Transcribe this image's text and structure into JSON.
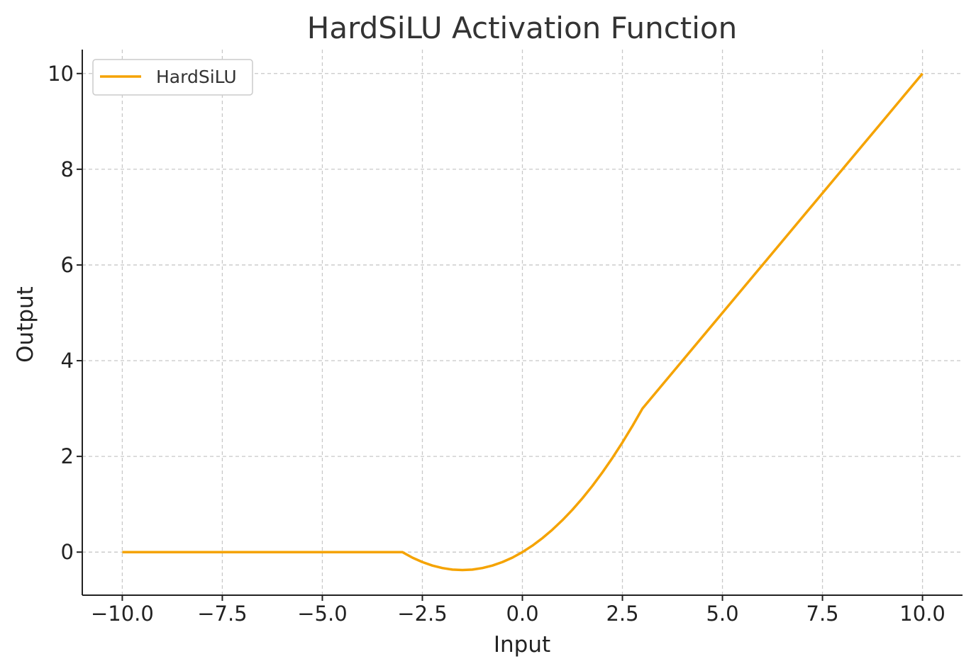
{
  "chart_data": {
    "type": "line",
    "title": "HardSiLU Activation Function",
    "xlabel": "Input",
    "ylabel": "Output",
    "xlim": [
      -11,
      11
    ],
    "ylim": [
      -0.9,
      10.5
    ],
    "x_ticks": [
      -10.0,
      -7.5,
      -5.0,
      -2.5,
      0.0,
      2.5,
      5.0,
      7.5,
      10.0
    ],
    "x_tick_labels": [
      "−10.0",
      "−7.5",
      "−5.0",
      "−2.5",
      "0.0",
      "2.5",
      "5.0",
      "7.5",
      "10.0"
    ],
    "y_ticks": [
      0,
      2,
      4,
      6,
      8,
      10
    ],
    "y_tick_labels": [
      "0",
      "2",
      "4",
      "6",
      "8",
      "10"
    ],
    "grid": true,
    "legend_position": "top-left",
    "series": [
      {
        "name": "HardSiLU",
        "color": "#f5a300",
        "x": [
          -10,
          -9,
          -8,
          -7,
          -6,
          -5,
          -4,
          -3,
          -2.75,
          -2.5,
          -2.25,
          -2,
          -1.75,
          -1.5,
          -1.25,
          -1,
          -0.75,
          -0.5,
          -0.25,
          0,
          0.25,
          0.5,
          0.75,
          1,
          1.25,
          1.5,
          1.75,
          2,
          2.25,
          2.5,
          2.75,
          3,
          4,
          5,
          6,
          7,
          8,
          9,
          10
        ],
        "y": [
          0,
          0,
          0,
          0,
          0,
          0,
          0,
          0,
          -0.115,
          -0.208,
          -0.281,
          -0.333,
          -0.365,
          -0.375,
          -0.365,
          -0.333,
          -0.281,
          -0.208,
          -0.115,
          0,
          0.135,
          0.292,
          0.469,
          0.667,
          0.885,
          1.125,
          1.385,
          1.667,
          1.969,
          2.292,
          2.635,
          3,
          4,
          5,
          6,
          7,
          8,
          9,
          10
        ]
      }
    ]
  }
}
